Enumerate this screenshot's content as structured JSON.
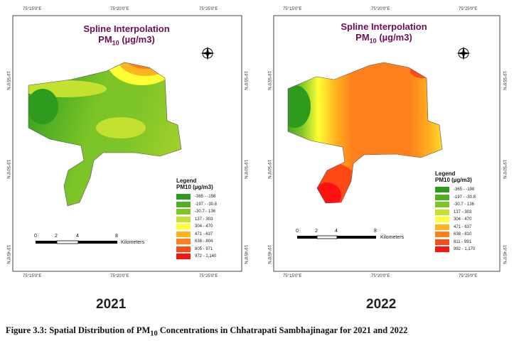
{
  "panels": [
    {
      "year": "2021",
      "title_line1": "Spline Interpolation",
      "title_line2": "PM",
      "title_sub": "10",
      "title_unit": "(µg/m3)",
      "lon_ticks": [
        "75°15'0\"E",
        "75°20'0\"E",
        "75°25'0\"E"
      ],
      "lat_ticks": [
        "19°55'0\"N",
        "19°50'0\"N",
        "19°45'0\"N"
      ],
      "legend_title": "Legend",
      "legend_subtitle": "PM10 (µg/m3)",
      "legend": [
        {
          "label": "-365 - -198",
          "color": "#2e9a1e"
        },
        {
          "label": "-197 - -30.8",
          "color": "#4fae22"
        },
        {
          "label": "-30.7 - 136",
          "color": "#7cc427"
        },
        {
          "label": "137 - 303",
          "color": "#c3e22f"
        },
        {
          "label": "304 - 470",
          "color": "#ffff33"
        },
        {
          "label": "471 - 637",
          "color": "#ffb31f"
        },
        {
          "label": "638 - 804",
          "color": "#ff7f1a"
        },
        {
          "label": "805 - 971",
          "color": "#ff4a16"
        },
        {
          "label": "972 - 1,140",
          "color": "#ff1111"
        }
      ],
      "scale": {
        "ticks": [
          "0",
          "2",
          "4",
          "8"
        ],
        "unit": "Kilometers"
      },
      "compass": [
        "N",
        "S",
        "E",
        "W"
      ]
    },
    {
      "year": "2022",
      "title_line1": "Spline Interpolation",
      "title_line2": "PM",
      "title_sub": "10",
      "title_unit": "(µg/m3)",
      "lon_ticks": [
        "75°15'0\"E",
        "75°20'0\"E",
        "75°25'0\"E"
      ],
      "lat_ticks": [
        "19°55'0\"N",
        "19°50'0\"N",
        "19°45'0\"N"
      ],
      "legend_title": "Legend",
      "legend_subtitle": "PM10 (µg/m3)",
      "legend": [
        {
          "label": "-365 - -198",
          "color": "#2e9a1e"
        },
        {
          "label": "-197 - -30.8",
          "color": "#4fae22"
        },
        {
          "label": "-30.7 - 136",
          "color": "#7cc427"
        },
        {
          "label": "137 - 303",
          "color": "#c3e22f"
        },
        {
          "label": "304 - 470",
          "color": "#ffff33"
        },
        {
          "label": "471 - 637",
          "color": "#ffb31f"
        },
        {
          "label": "638 - 810",
          "color": "#ff7f1a"
        },
        {
          "label": "811 - 991",
          "color": "#ff4a16"
        },
        {
          "label": "992 - 1,170",
          "color": "#ff1111"
        }
      ],
      "scale": {
        "ticks": [
          "0",
          "2",
          "4",
          "8"
        ],
        "unit": "Kilometers"
      },
      "compass": [
        "N",
        "S",
        "E",
        "W"
      ]
    }
  ],
  "caption": {
    "prefix": "Figure 3.3",
    "text1": ": Spatial Distribution of PM",
    "sub": "10",
    "text2": " Concentrations in Chhatrapati Sambhajinagar for 2021 and 2022"
  }
}
